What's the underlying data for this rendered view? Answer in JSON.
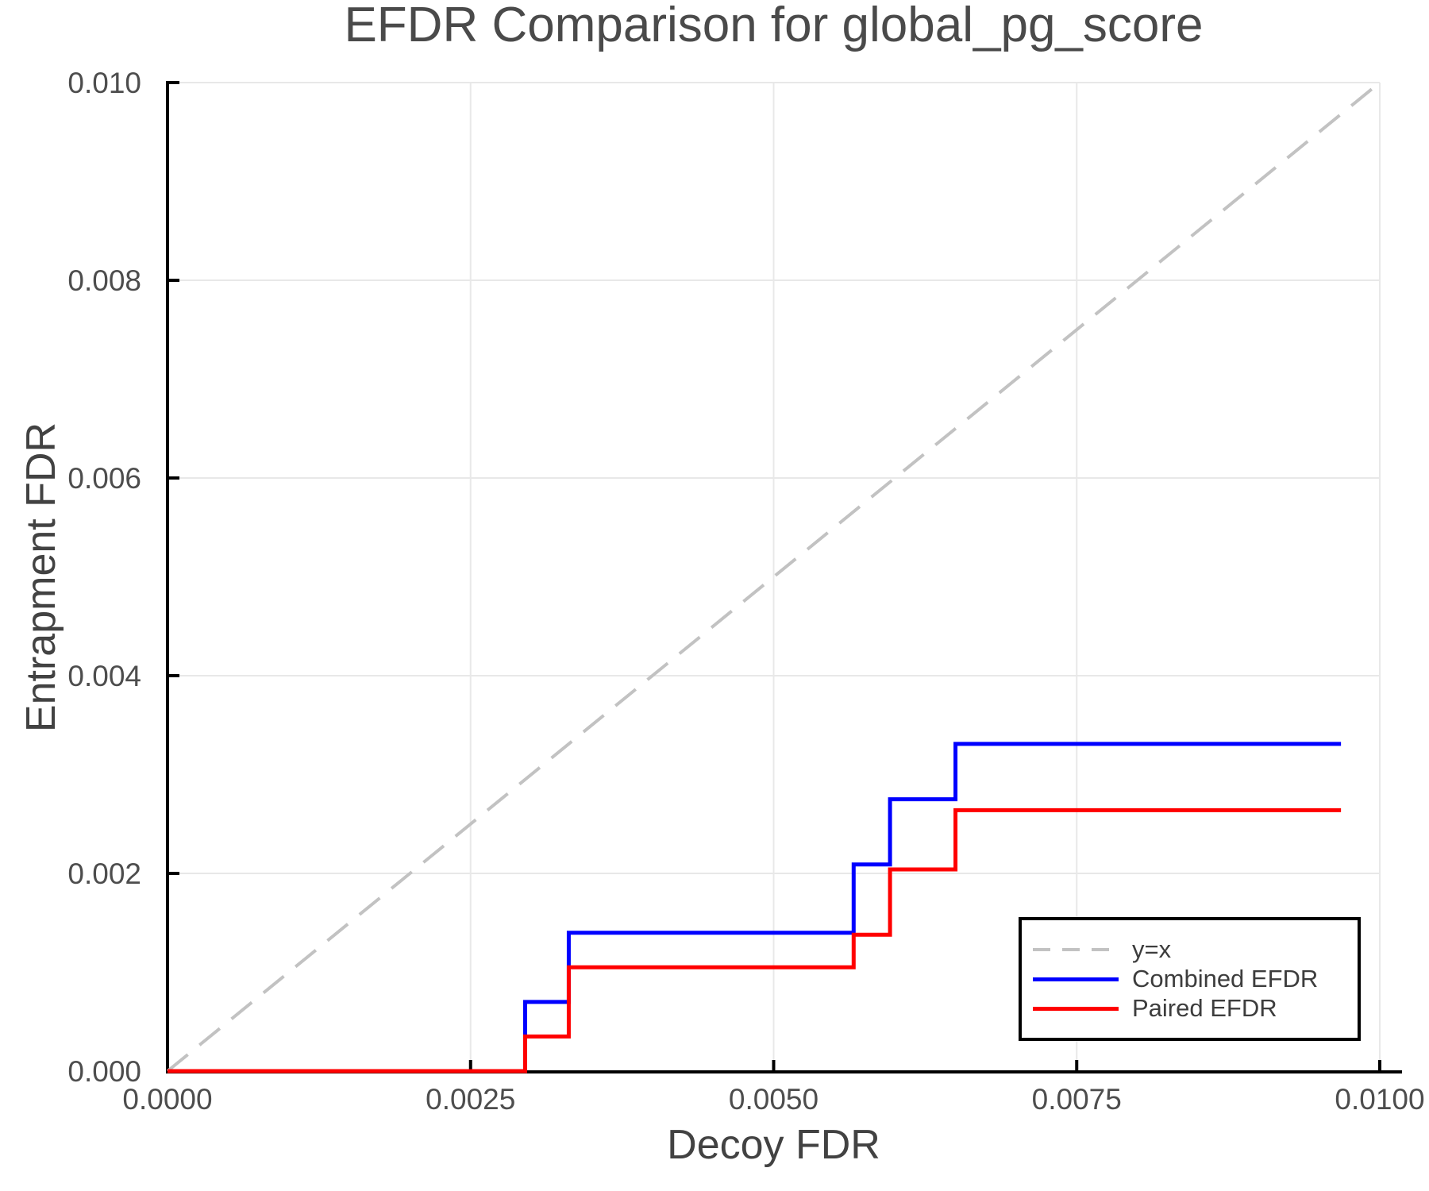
{
  "chart_data": {
    "type": "line",
    "title": "EFDR Comparison for global_pg_score",
    "xlabel": "Decoy FDR",
    "ylabel": "Entrapment FDR",
    "xlim": [
      0,
      0.01
    ],
    "ylim": [
      0,
      0.01
    ],
    "grid": true,
    "legend_position": "lower right",
    "x_ticks": {
      "values": [
        0,
        0.0025,
        0.005,
        0.0075,
        0.01
      ],
      "labels": [
        "0.0000",
        "0.0025",
        "0.0050",
        "0.0075",
        "0.0100"
      ]
    },
    "y_ticks": {
      "values": [
        0,
        0.002,
        0.004,
        0.006,
        0.008,
        0.01
      ],
      "labels": [
        "0.000",
        "0.002",
        "0.004",
        "0.006",
        "0.008",
        "0.010"
      ]
    },
    "series": [
      {
        "name": "y=x",
        "style": "dashed",
        "color": "#c2c2c2",
        "points_x": [
          0,
          0.01
        ],
        "points_y": [
          0,
          0.01
        ]
      },
      {
        "name": "Combined EFDR",
        "style": "step",
        "color": "#0000ff",
        "points_x": [
          0,
          0.00295,
          0.00331,
          0.00566,
          0.00596,
          0.0065
        ],
        "points_y": [
          0,
          0.0007,
          0.0014,
          0.00209,
          0.00275,
          0.00331
        ],
        "x_end": 0.00968
      },
      {
        "name": "Paired EFDR",
        "style": "step",
        "color": "#ff0000",
        "points_x": [
          0,
          0.00295,
          0.00331,
          0.00566,
          0.00596,
          0.0065
        ],
        "points_y": [
          0,
          0.00035,
          0.00105,
          0.00138,
          0.00204,
          0.00264
        ],
        "x_end": 0.00968
      }
    ]
  },
  "colors": {
    "grid": "#e8e8e8",
    "spine": "#000000",
    "tick": "#000000",
    "tick_label": "#4d4d4d",
    "axis_label": "#424242",
    "title": "#4a4a4a",
    "legend_border": "#000000",
    "legend_bg": "#ffffff"
  }
}
